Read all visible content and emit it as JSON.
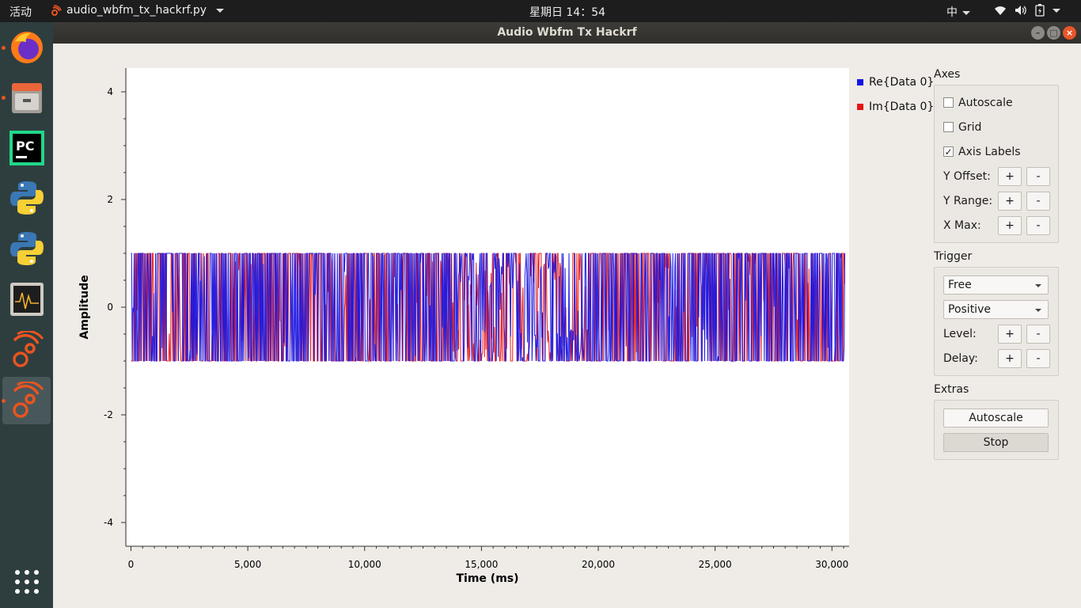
{
  "topbar": {
    "activities": "活动",
    "app_name": "audio_wbfm_tx_hackrf.py",
    "clock": "星期日 14：54",
    "input_method": "中"
  },
  "dock": {
    "items": [
      {
        "name": "firefox-icon",
        "running": true
      },
      {
        "name": "files-icon",
        "running": true
      },
      {
        "name": "pycharm-icon",
        "running": false
      },
      {
        "name": "python-icon",
        "running": false
      },
      {
        "name": "python-icon-2",
        "running": false
      },
      {
        "name": "system-monitor-icon",
        "running": false
      },
      {
        "name": "gnuradio-icon",
        "running": false
      },
      {
        "name": "gnuradio-icon-2",
        "running": true,
        "active": true
      }
    ]
  },
  "window": {
    "title": "Audio Wbfm Tx Hackrf"
  },
  "legend": {
    "re": "Re{Data 0}",
    "im": "Im{Data 0}"
  },
  "colors": {
    "re": "#1414e6",
    "im": "#e61414"
  },
  "panel": {
    "axes_title": "Axes",
    "autoscale_label": "Autoscale",
    "autoscale_checked": false,
    "grid_label": "Grid",
    "grid_checked": false,
    "axis_labels_label": "Axis Labels",
    "axis_labels_checked": true,
    "y_offset_label": "Y Offset:",
    "y_range_label": "Y Range:",
    "x_max_label": "X Max:",
    "plus": "+",
    "minus": "-",
    "trigger_title": "Trigger",
    "trigger_mode": "Free",
    "trigger_slope": "Positive",
    "level_label": "Level:",
    "delay_label": "Delay:",
    "extras_title": "Extras",
    "autoscale_button": "Autoscale",
    "stop_button": "Stop"
  },
  "chart_data": {
    "type": "line",
    "xlabel": "Time (ms)",
    "ylabel": "Amplitude",
    "xlim": [
      0,
      30600
    ],
    "ylim": [
      -4.5,
      4.5
    ],
    "x_ticks": [
      0,
      5000,
      10000,
      15000,
      20000,
      25000,
      30000
    ],
    "x_tick_labels": [
      "0",
      "5,000",
      "10,000",
      "15,000",
      "20,000",
      "25,000",
      "30,000"
    ],
    "y_ticks": [
      4,
      2,
      0,
      -2,
      -4
    ],
    "y_tick_labels": [
      "4",
      "2",
      "0",
      "-2",
      "-4"
    ],
    "grid": false,
    "series": [
      {
        "name": "Re{Data 0}",
        "color": "#1414e6",
        "value_range": [
          -1,
          1
        ]
      },
      {
        "name": "Im{Data 0}",
        "color": "#e61414",
        "value_range": [
          -1,
          1
        ]
      }
    ]
  }
}
